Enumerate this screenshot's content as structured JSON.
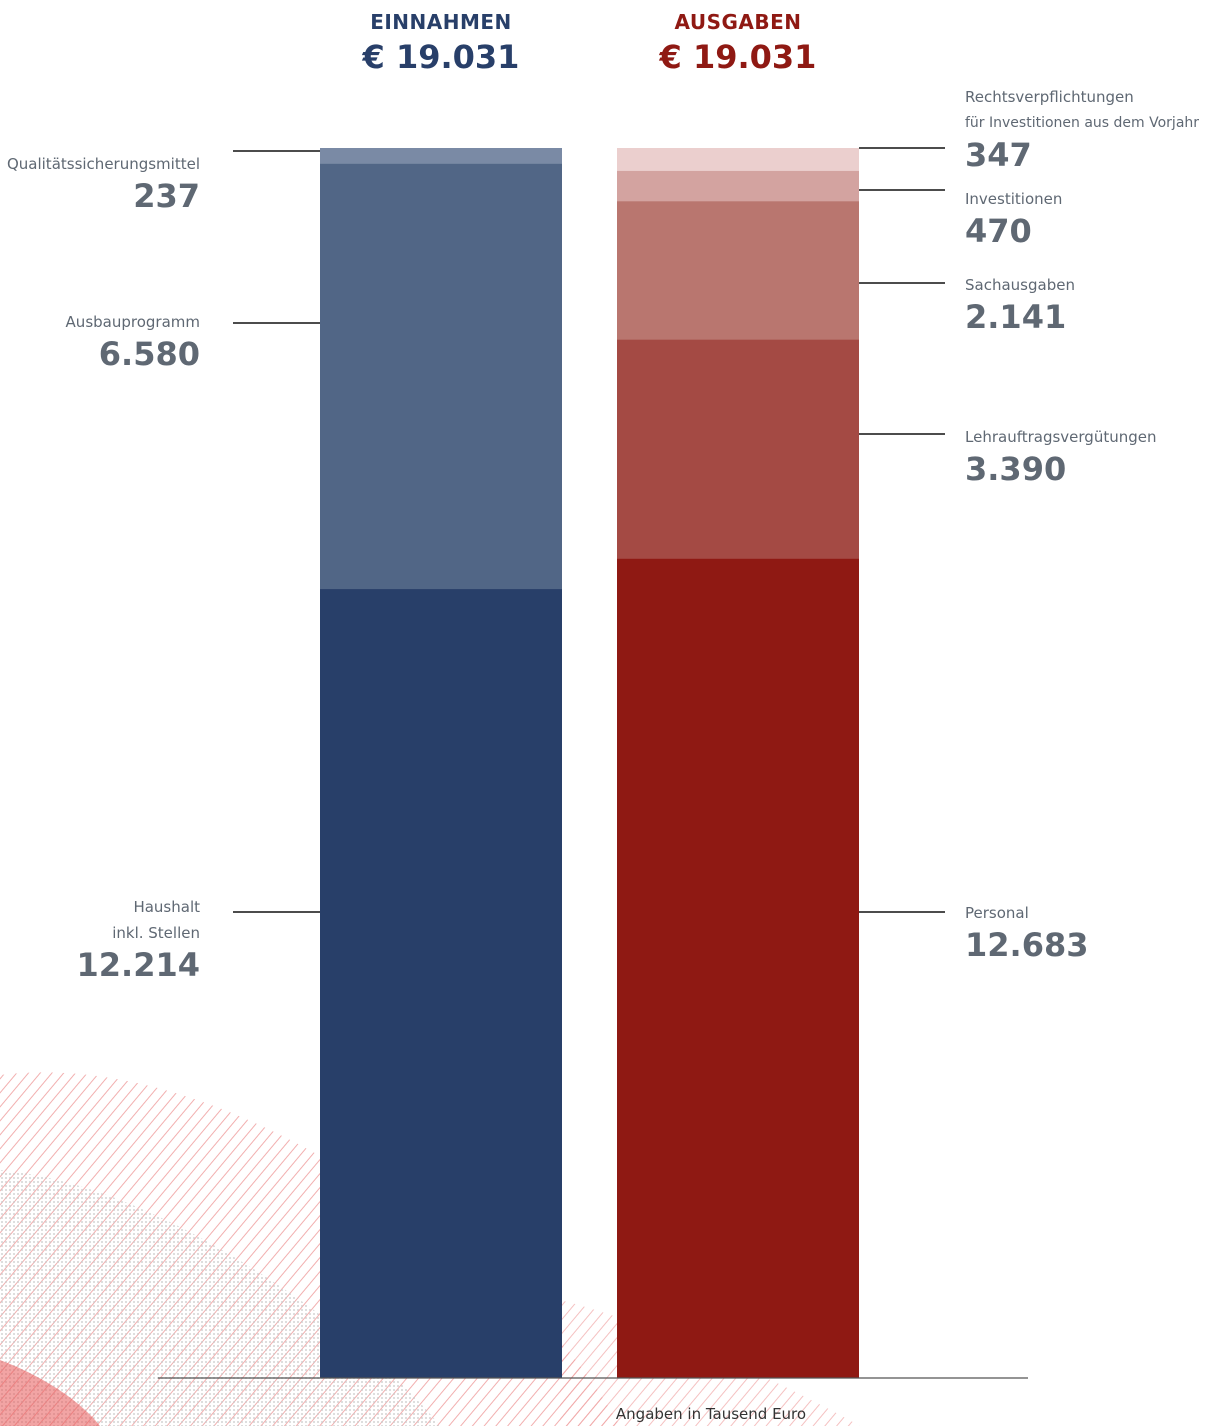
{
  "chart_data": {
    "type": "bar",
    "stacked": true,
    "unit": "Angaben in Tausend Euro",
    "categories": [
      "EINNAHMEN",
      "AUSGABEN"
    ],
    "totals_display": [
      "€ 19.031",
      "€ 19.031"
    ],
    "totals": [
      19031,
      19031
    ],
    "bars": [
      {
        "title": "EINNAHMEN",
        "total_display": "€ 19.031",
        "color": "#283f69",
        "segments": [
          {
            "name": "Haushalt inkl. Stellen",
            "label_lines": [
              "Haushalt",
              "inkl. Stellen"
            ],
            "value": 12214,
            "value_display": "12.214",
            "color": "#283f69"
          },
          {
            "name": "Ausbauprogramm",
            "label_lines": [
              "Ausbauprogramm"
            ],
            "value": 6580,
            "value_display": "6.580",
            "color": "#516686"
          },
          {
            "name": "Qualitätssicherungsmittel",
            "label_lines": [
              "Qualitätssicherungsmittel"
            ],
            "value": 237,
            "value_display": "237",
            "color": "#7a8aa5"
          }
        ]
      },
      {
        "title": "AUSGABEN",
        "total_display": "€ 19.031",
        "color": "#8f1913",
        "segments": [
          {
            "name": "Personal",
            "label_lines": [
              "Personal"
            ],
            "value": 12683,
            "value_display": "12.683",
            "color": "#8f1913"
          },
          {
            "name": "Lehrauftragsvergütungen",
            "label_lines": [
              "Lehrauftragsvergütungen"
            ],
            "value": 3390,
            "value_display": "3.390",
            "color": "#a44a44"
          },
          {
            "name": "Sachausgaben",
            "label_lines": [
              "Sachausgaben"
            ],
            "value": 2141,
            "value_display": "2.141",
            "color": "#b9766f"
          },
          {
            "name": "Investitionen",
            "label_lines": [
              "Investitionen"
            ],
            "value": 470,
            "value_display": "470",
            "color": "#d3a3a0"
          },
          {
            "name": "Rechtsverpflichtungen für Investitionen aus dem Vorjahr",
            "label_lines": [
              "Rechtsverpflichtungen",
              "für Investitionen aus dem Vorjahr"
            ],
            "value": 347,
            "value_display": "347",
            "color": "#ebcfce"
          }
        ]
      }
    ]
  }
}
